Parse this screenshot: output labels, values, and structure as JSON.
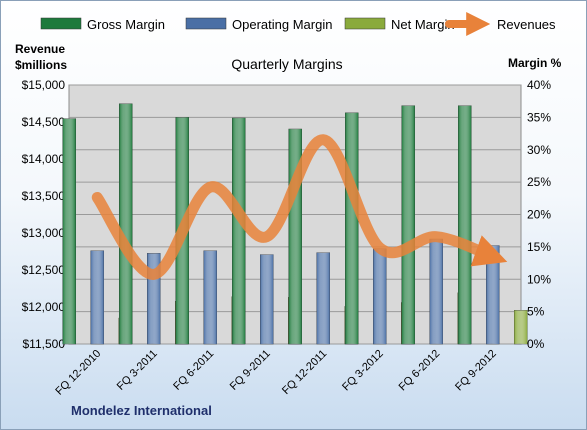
{
  "chart_data": {
    "type": "bar",
    "title": "Quarterly Margins",
    "y_left_label_lines": [
      "Revenue",
      "$millions"
    ],
    "y_right_label": "Margin %",
    "footer": "Mondelez International",
    "categories": [
      "FQ 12-2010",
      "FQ 3-2011",
      "FQ 6-2011",
      "FQ 9-2011",
      "FQ 12-2011",
      "FQ 3-2012",
      "FQ 6-2012",
      "FQ 9-2012"
    ],
    "ylim_left": [
      11500,
      15000
    ],
    "yticks_left": [
      "$11,500",
      "$12,000",
      "$12,500",
      "$13,000",
      "$13,500",
      "$14,000",
      "$14,500",
      "$15,000"
    ],
    "ylim_right": [
      0,
      40
    ],
    "yticks_right": [
      "0%",
      "5%",
      "10%",
      "15%",
      "20%",
      "25%",
      "30%",
      "35%",
      "40%"
    ],
    "grid": true,
    "legend_position": "top",
    "series": [
      {
        "name": "Gross Margin",
        "kind": "bar",
        "axis": "right",
        "color": "#1e7a3c",
        "values": [
          34.8,
          37.1,
          35.0,
          34.9,
          33.2,
          35.7,
          36.8,
          36.8
        ]
      },
      {
        "name": "Operating Margin",
        "kind": "bar",
        "axis": "right",
        "color": "#4a6fa5",
        "values": [
          14.4,
          14.0,
          14.4,
          13.8,
          14.1,
          14.7,
          16.2,
          15.2
        ]
      },
      {
        "name": "Net Margin",
        "kind": "bar",
        "axis": "right",
        "color": "#8aaa3c",
        "values": [
          4.0,
          6.6,
          7.3,
          7.2,
          5.8,
          6.4,
          7.9,
          5.2
        ]
      },
      {
        "name": "Revenues",
        "kind": "line",
        "axis": "left",
        "color": "#e8823a",
        "values": [
          13480,
          12440,
          13620,
          12950,
          14260,
          12800,
          12950,
          12680
        ]
      }
    ]
  }
}
